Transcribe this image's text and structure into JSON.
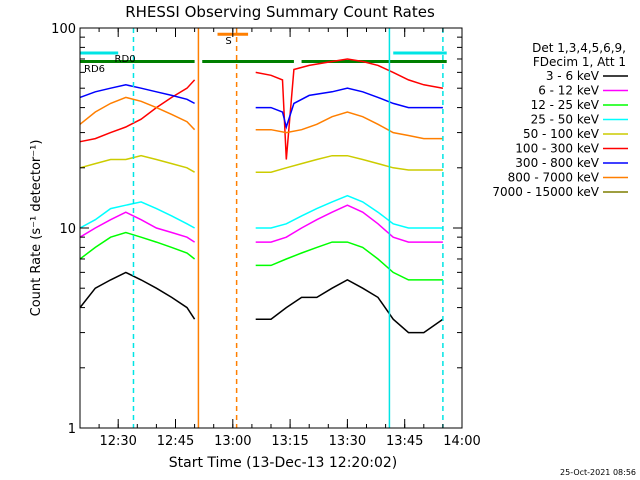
{
  "chart_data": {
    "type": "line",
    "title": "RHESSI Observing Summary Count Rates",
    "xlabel": "Start Time (13-Dec-13 12:20:02)",
    "ylabel": "Count Rate (s⁻¹ detector⁻¹)",
    "yscale": "log",
    "ylim": [
      1,
      100
    ],
    "xlim": [
      "12:20",
      "14:00"
    ],
    "x_ticks": [
      "12:30",
      "12:45",
      "13:00",
      "13:15",
      "13:30",
      "13:45",
      "14:00"
    ],
    "y_ticks": [
      "1",
      "10",
      "100"
    ],
    "legend": {
      "placement": "right",
      "header": [
        "Det 1,3,4,5,6,9,",
        "FDecim 1, Att 1"
      ]
    },
    "footer": "25-Oct-2021 08:56",
    "annotations": [
      {
        "text": "RD0",
        "time": "12:28",
        "color": "#007f00"
      },
      {
        "text": "RD6",
        "time": "12:20",
        "color": "#007f00"
      },
      {
        "text": "S",
        "time": "12:57",
        "color": "#ff7f00"
      }
    ],
    "vertical_markers": [
      {
        "time": "12:34",
        "color": "#00e5e5",
        "style": "dashed"
      },
      {
        "time": "12:51",
        "color": "#ff7f00",
        "style": "solid"
      },
      {
        "time": "13:01",
        "color": "#ff7f00",
        "style": "dashed"
      },
      {
        "time": "13:41",
        "color": "#00e5e5",
        "style": "solid"
      },
      {
        "time": "13:55",
        "color": "#00e5e5",
        "style": "dashed"
      }
    ],
    "status_bars": [
      {
        "name": "RD",
        "color": "#007f00",
        "level": 68,
        "segments": [
          [
            "12:20",
            "12:34"
          ],
          [
            "12:34",
            "12:50"
          ],
          [
            "12:52",
            "13:16"
          ],
          [
            "13:18",
            "13:56"
          ]
        ]
      },
      {
        "name": "S",
        "color": "#ff7f00",
        "level": 93,
        "segments": [
          [
            "12:56",
            "13:04"
          ]
        ]
      },
      {
        "name": "cyan",
        "color": "#00e5e5",
        "level": 75,
        "segments": [
          [
            "12:20",
            "12:30"
          ],
          [
            "13:42",
            "13:56"
          ]
        ]
      }
    ],
    "series": [
      {
        "name": "3 - 6 keV",
        "color": "#000000",
        "segments": [
          {
            "t": [
              "12:20",
              "12:24",
              "12:28",
              "12:32",
              "12:36",
              "12:40",
              "12:44",
              "12:48",
              "12:50"
            ],
            "y": [
              4.0,
              5.0,
              5.5,
              6.0,
              5.5,
              5.0,
              4.5,
              4.0,
              3.5
            ]
          },
          {
            "t": [
              "13:06",
              "13:10",
              "13:14",
              "13:18",
              "13:22",
              "13:26",
              "13:30",
              "13:34",
              "13:38",
              "13:42",
              "13:46",
              "13:50",
              "13:55"
            ],
            "y": [
              3.5,
              3.5,
              4.0,
              4.5,
              4.5,
              5.0,
              5.5,
              5.0,
              4.5,
              3.5,
              3.0,
              3.0,
              3.5
            ]
          }
        ]
      },
      {
        "name": "6 - 12 keV",
        "color": "#ff00ff",
        "segments": [
          {
            "t": [
              "12:20",
              "12:24",
              "12:28",
              "12:32",
              "12:36",
              "12:40",
              "12:44",
              "12:48",
              "12:50"
            ],
            "y": [
              9,
              10,
              11,
              12,
              11,
              10,
              9.5,
              9,
              8.5
            ]
          },
          {
            "t": [
              "13:06",
              "13:10",
              "13:14",
              "13:18",
              "13:22",
              "13:26",
              "13:30",
              "13:34",
              "13:38",
              "13:42",
              "13:46",
              "13:50",
              "13:55"
            ],
            "y": [
              8.5,
              8.5,
              9,
              10,
              11,
              12,
              13,
              12,
              10.5,
              9,
              8.5,
              8.5,
              8.5
            ]
          }
        ]
      },
      {
        "name": "12 - 25 keV",
        "color": "#00ff00",
        "segments": [
          {
            "t": [
              "12:20",
              "12:24",
              "12:28",
              "12:32",
              "12:36",
              "12:40",
              "12:44",
              "12:48",
              "12:50"
            ],
            "y": [
              7,
              8,
              9,
              9.5,
              9,
              8.5,
              8,
              7.5,
              7
            ]
          },
          {
            "t": [
              "13:06",
              "13:10",
              "13:14",
              "13:18",
              "13:22",
              "13:26",
              "13:30",
              "13:34",
              "13:38",
              "13:42",
              "13:46",
              "13:50",
              "13:55"
            ],
            "y": [
              6.5,
              6.5,
              7,
              7.5,
              8,
              8.5,
              8.5,
              8,
              7,
              6,
              5.5,
              5.5,
              5.5
            ]
          }
        ]
      },
      {
        "name": "25 - 50 keV",
        "color": "#00ffff",
        "segments": [
          {
            "t": [
              "12:20",
              "12:24",
              "12:28",
              "12:32",
              "12:36",
              "12:40",
              "12:44",
              "12:48",
              "12:50"
            ],
            "y": [
              10,
              11,
              12.5,
              13,
              13.5,
              12.5,
              11.5,
              10.5,
              10
            ]
          },
          {
            "t": [
              "13:06",
              "13:10",
              "13:14",
              "13:18",
              "13:22",
              "13:26",
              "13:30",
              "13:34",
              "13:38",
              "13:42",
              "13:46",
              "13:50",
              "13:55"
            ],
            "y": [
              10,
              10,
              10.5,
              11.5,
              12.5,
              13.5,
              14.5,
              13.5,
              12,
              10.5,
              10,
              10,
              10
            ]
          }
        ]
      },
      {
        "name": "50 - 100 keV",
        "color": "#cccc00",
        "segments": [
          {
            "t": [
              "12:20",
              "12:24",
              "12:28",
              "12:32",
              "12:36",
              "12:40",
              "12:44",
              "12:48",
              "12:50"
            ],
            "y": [
              20,
              21,
              22,
              22,
              23,
              22,
              21,
              20,
              19
            ]
          },
          {
            "t": [
              "13:06",
              "13:10",
              "13:14",
              "13:18",
              "13:22",
              "13:26",
              "13:30",
              "13:34",
              "13:38",
              "13:42",
              "13:46",
              "13:50",
              "13:55"
            ],
            "y": [
              19,
              19,
              20,
              21,
              22,
              23,
              23,
              22,
              21,
              20,
              19.5,
              19.5,
              19.5
            ]
          }
        ]
      },
      {
        "name": "100 - 300 keV",
        "color": "#ff0000",
        "segments": [
          {
            "t": [
              "12:20",
              "12:24",
              "12:28",
              "12:32",
              "12:36",
              "12:40",
              "12:44",
              "12:48",
              "12:50"
            ],
            "y": [
              27,
              28,
              30,
              32,
              35,
              40,
              45,
              50,
              55
            ]
          },
          {
            "t": [
              "13:06",
              "13:10",
              "13:13",
              "13:14",
              "13:16",
              "13:20",
              "13:26",
              "13:30",
              "13:34",
              "13:38",
              "13:42",
              "13:46",
              "13:50",
              "13:55"
            ],
            "y": [
              60,
              58,
              55,
              22,
              62,
              65,
              68,
              70,
              68,
              65,
              60,
              55,
              52,
              50
            ]
          }
        ]
      },
      {
        "name": "300 - 800 keV",
        "color": "#0000ff",
        "segments": [
          {
            "t": [
              "12:20",
              "12:24",
              "12:28",
              "12:32",
              "12:36",
              "12:40",
              "12:44",
              "12:48",
              "12:50"
            ],
            "y": [
              45,
              48,
              50,
              52,
              50,
              48,
              46,
              44,
              42
            ]
          },
          {
            "t": [
              "13:06",
              "13:10",
              "13:13",
              "13:14",
              "13:16",
              "13:20",
              "13:26",
              "13:30",
              "13:34",
              "13:38",
              "13:42",
              "13:46",
              "13:50",
              "13:55"
            ],
            "y": [
              40,
              40,
              38,
              32,
              42,
              46,
              48,
              50,
              48,
              45,
              42,
              40,
              40,
              40
            ]
          }
        ]
      },
      {
        "name": "800 - 7000 keV",
        "color": "#ff7f00",
        "segments": [
          {
            "t": [
              "12:20",
              "12:24",
              "12:28",
              "12:32",
              "12:36",
              "12:40",
              "12:44",
              "12:48",
              "12:50"
            ],
            "y": [
              33,
              38,
              42,
              45,
              43,
              40,
              37,
              34,
              31
            ]
          },
          {
            "t": [
              "13:06",
              "13:10",
              "13:14",
              "13:18",
              "13:22",
              "13:26",
              "13:30",
              "13:34",
              "13:38",
              "13:42",
              "13:46",
              "13:50",
              "13:55"
            ],
            "y": [
              31,
              31,
              30,
              31,
              33,
              36,
              38,
              36,
              33,
              30,
              29,
              28,
              28
            ]
          }
        ]
      },
      {
        "name": "7000 - 15000 keV",
        "color": "#7f7f00",
        "segments": []
      }
    ]
  }
}
